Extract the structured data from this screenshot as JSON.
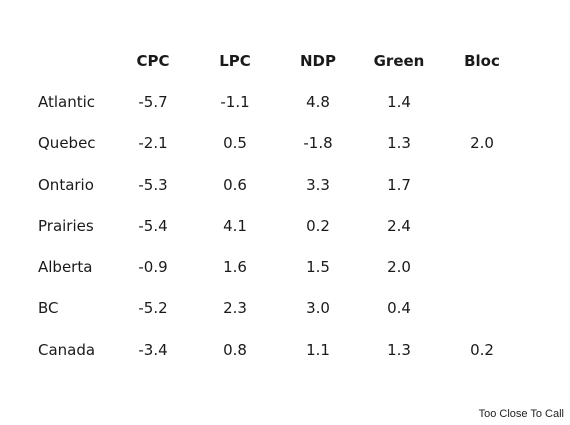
{
  "table": {
    "headers": [
      "CPC",
      "LPC",
      "NDP",
      "Green",
      "Bloc"
    ],
    "rows": [
      {
        "region": "Atlantic",
        "values": [
          "-5.7",
          "-1.1",
          "4.8",
          "1.4",
          ""
        ]
      },
      {
        "region": "Quebec",
        "values": [
          "-2.1",
          "0.5",
          "-1.8",
          "1.3",
          "2.0"
        ]
      },
      {
        "region": "Ontario",
        "values": [
          "-5.3",
          "0.6",
          "3.3",
          "1.7",
          ""
        ]
      },
      {
        "region": "Prairies",
        "values": [
          "-5.4",
          "4.1",
          "0.2",
          "2.4",
          ""
        ]
      },
      {
        "region": "Alberta",
        "values": [
          "-0.9",
          "1.6",
          "1.5",
          "2.0",
          ""
        ]
      },
      {
        "region": "BC",
        "values": [
          "-5.2",
          "2.3",
          "3.0",
          "0.4",
          ""
        ]
      },
      {
        "region": "Canada",
        "values": [
          "-3.4",
          "0.8",
          "1.1",
          "1.3",
          "0.2"
        ]
      }
    ]
  },
  "credit": "Too Close To Call"
}
